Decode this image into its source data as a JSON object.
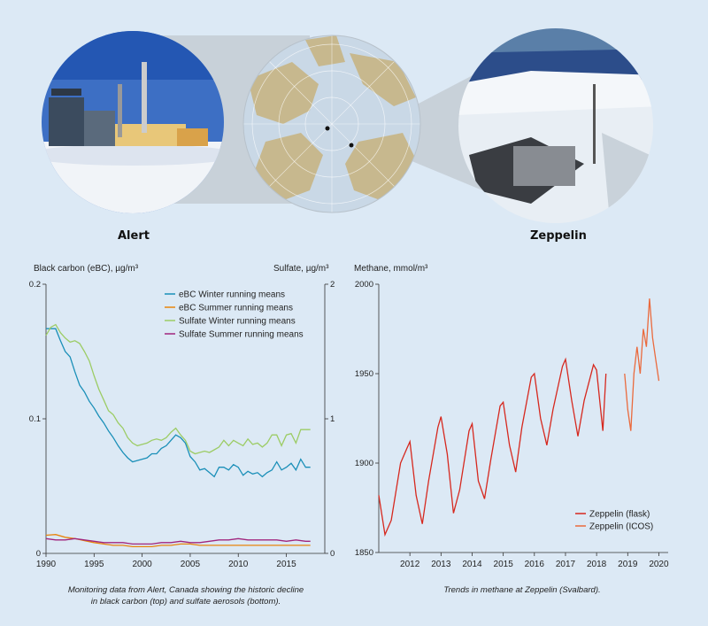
{
  "stations": {
    "left": {
      "name": "Alert"
    },
    "right": {
      "name": "Zeppelin"
    }
  },
  "icons": {
    "left_photo": "alert-station-photo",
    "globe": "arctic-globe-map",
    "right_photo": "zeppelin-station-photo"
  },
  "colors": {
    "background": "#dce9f5",
    "ebc_winter": "#1a8fb8",
    "ebc_summer": "#e8840c",
    "sulfate_winter": "#9ccc65",
    "sulfate_summer": "#a0257d",
    "methane_flask": "#d6281e",
    "methane_icos": "#ea6a3d"
  },
  "captions": {
    "left_line1": "Monitoring data from Alert, Canada showing the historic decline",
    "left_line2": "in black carbon (top) and sulfate aerosols (bottom).",
    "right": "Trends in methane at Zeppelin (Svalbard)."
  },
  "chart_data": [
    {
      "type": "line",
      "ylabel": "Black carbon (eBC), µg/m³",
      "y2label": "Sulfate, µg/m³",
      "xlim": [
        1990,
        2019
      ],
      "ylim": [
        0,
        0.2
      ],
      "y2lim": [
        0,
        2
      ],
      "xticks": [
        "1990",
        "1995",
        "2000",
        "2005",
        "2010",
        "2015"
      ],
      "yticks": [
        "0",
        "0.1",
        "0.2"
      ],
      "y2ticks": [
        "0",
        "1",
        "2"
      ],
      "legend_position": "top-right",
      "series": [
        {
          "name": "eBC Winter running means",
          "axis": "left",
          "x": [
            1990,
            1990.5,
            1991,
            1991.5,
            1992,
            1992.5,
            1993,
            1993.5,
            1994,
            1994.5,
            1995,
            1995.5,
            1996,
            1996.5,
            1997,
            1997.5,
            1998,
            1998.5,
            1999,
            1999.5,
            2000,
            2000.5,
            2001,
            2001.5,
            2002,
            2002.5,
            2003,
            2003.5,
            2004,
            2004.5,
            2005,
            2005.5,
            2006,
            2006.5,
            2007,
            2007.5,
            2008,
            2008.5,
            2009,
            2009.5,
            2010,
            2010.5,
            2011,
            2011.5,
            2012,
            2012.5,
            2013,
            2013.5,
            2014,
            2014.5,
            2015,
            2015.5,
            2016,
            2016.5,
            2017,
            2017.5
          ],
          "y": [
            0.167,
            0.167,
            0.167,
            0.158,
            0.15,
            0.146,
            0.135,
            0.125,
            0.12,
            0.113,
            0.108,
            0.102,
            0.097,
            0.091,
            0.086,
            0.08,
            0.075,
            0.071,
            0.068,
            0.069,
            0.07,
            0.071,
            0.074,
            0.074,
            0.078,
            0.08,
            0.084,
            0.088,
            0.086,
            0.082,
            0.072,
            0.068,
            0.062,
            0.063,
            0.06,
            0.057,
            0.064,
            0.064,
            0.062,
            0.066,
            0.064,
            0.058,
            0.061,
            0.059,
            0.06,
            0.057,
            0.06,
            0.062,
            0.068,
            0.062,
            0.064,
            0.067,
            0.062,
            0.07,
            0.064,
            0.064
          ]
        },
        {
          "name": "eBC Summer running means",
          "axis": "left",
          "x": [
            1990,
            1991,
            1992,
            1993,
            1994,
            1995,
            1996,
            1997,
            1998,
            1999,
            2000,
            2001,
            2002,
            2003,
            2004,
            2005,
            2006,
            2007,
            2008,
            2009,
            2010,
            2011,
            2012,
            2013,
            2014,
            2015,
            2016,
            2017,
            2017.5
          ],
          "y": [
            0.0135,
            0.014,
            0.012,
            0.011,
            0.0095,
            0.008,
            0.007,
            0.006,
            0.006,
            0.005,
            0.005,
            0.005,
            0.006,
            0.006,
            0.007,
            0.007,
            0.006,
            0.006,
            0.006,
            0.006,
            0.006,
            0.006,
            0.006,
            0.006,
            0.006,
            0.006,
            0.006,
            0.006,
            0.006
          ]
        },
        {
          "name": "Sulfate Winter running means",
          "axis": "right",
          "x": [
            1990,
            1990.5,
            1991,
            1991.5,
            1992,
            1992.5,
            1993,
            1993.5,
            1994,
            1994.5,
            1995,
            1995.5,
            1996,
            1996.5,
            1997,
            1997.5,
            1998,
            1998.5,
            1999,
            1999.5,
            2000,
            2000.5,
            2001,
            2001.5,
            2002,
            2002.5,
            2003,
            2003.5,
            2004,
            2004.5,
            2005,
            2005.5,
            2006,
            2006.5,
            2007,
            2007.5,
            2008,
            2008.5,
            2009,
            2009.5,
            2010,
            2010.5,
            2011,
            2011.5,
            2012,
            2012.5,
            2013,
            2013.5,
            2014,
            2014.5,
            2015,
            2015.5,
            2016,
            2016.5,
            2017,
            2017.5
          ],
          "y": [
            1.62,
            1.68,
            1.7,
            1.64,
            1.6,
            1.57,
            1.58,
            1.56,
            1.5,
            1.43,
            1.32,
            1.22,
            1.14,
            1.06,
            1.03,
            0.97,
            0.93,
            0.86,
            0.82,
            0.8,
            0.81,
            0.82,
            0.84,
            0.85,
            0.84,
            0.86,
            0.9,
            0.93,
            0.88,
            0.84,
            0.76,
            0.74,
            0.75,
            0.76,
            0.75,
            0.77,
            0.79,
            0.84,
            0.8,
            0.84,
            0.82,
            0.8,
            0.85,
            0.81,
            0.82,
            0.79,
            0.82,
            0.88,
            0.88,
            0.8,
            0.88,
            0.89,
            0.82,
            0.92,
            0.92,
            0.92
          ]
        },
        {
          "name": "Sulfate Summer running means",
          "axis": "right",
          "x": [
            1990,
            1991,
            1992,
            1993,
            1994,
            1995,
            1996,
            1997,
            1998,
            1999,
            2000,
            2001,
            2002,
            2003,
            2004,
            2005,
            2006,
            2007,
            2008,
            2009,
            2010,
            2011,
            2012,
            2013,
            2014,
            2015,
            2016,
            2017,
            2017.5
          ],
          "y": [
            0.11,
            0.1,
            0.1,
            0.11,
            0.1,
            0.09,
            0.08,
            0.08,
            0.08,
            0.07,
            0.07,
            0.07,
            0.08,
            0.08,
            0.09,
            0.08,
            0.08,
            0.09,
            0.1,
            0.1,
            0.11,
            0.1,
            0.1,
            0.1,
            0.1,
            0.09,
            0.1,
            0.09,
            0.09
          ]
        }
      ]
    },
    {
      "type": "line",
      "ylabel": "Methane, mmol/m³",
      "xlim": [
        2011,
        2020.3
      ],
      "ylim": [
        1850,
        2000
      ],
      "xticks": [
        "2012",
        "2013",
        "2014",
        "2015",
        "2016",
        "2017",
        "2018",
        "2019",
        "2020"
      ],
      "yticks": [
        "1850",
        "1900",
        "1950",
        "2000"
      ],
      "legend_position": "bottom-right",
      "series": [
        {
          "name": "Zeppelin (flask)",
          "x": [
            2011.0,
            2011.2,
            2011.4,
            2011.7,
            2011.9,
            2012.0,
            2012.2,
            2012.4,
            2012.6,
            2012.9,
            2013.0,
            2013.2,
            2013.4,
            2013.6,
            2013.9,
            2014.0,
            2014.2,
            2014.4,
            2014.6,
            2014.9,
            2015.0,
            2015.2,
            2015.4,
            2015.6,
            2015.9,
            2016.0,
            2016.2,
            2016.4,
            2016.6,
            2016.9,
            2017.0,
            2017.2,
            2017.4,
            2017.6,
            2017.9,
            2018.0,
            2018.2,
            2018.3
          ],
          "y": [
            1882,
            1860,
            1868,
            1900,
            1908,
            1912,
            1882,
            1866,
            1890,
            1920,
            1926,
            1905,
            1872,
            1885,
            1918,
            1922,
            1890,
            1880,
            1902,
            1932,
            1934,
            1910,
            1895,
            1920,
            1948,
            1950,
            1925,
            1910,
            1930,
            1954,
            1958,
            1935,
            1915,
            1935,
            1955,
            1952,
            1918,
            1950
          ],
          "color": "#d6281e"
        },
        {
          "name": "Zeppelin (ICOS)",
          "x": [
            2018.9,
            2019.0,
            2019.1,
            2019.2,
            2019.3,
            2019.4,
            2019.5,
            2019.6,
            2019.7,
            2019.8,
            2019.9,
            2020.0
          ],
          "y": [
            1950,
            1930,
            1918,
            1950,
            1965,
            1950,
            1975,
            1965,
            1992,
            1970,
            1958,
            1946
          ],
          "color": "#ea6a3d"
        }
      ]
    }
  ]
}
